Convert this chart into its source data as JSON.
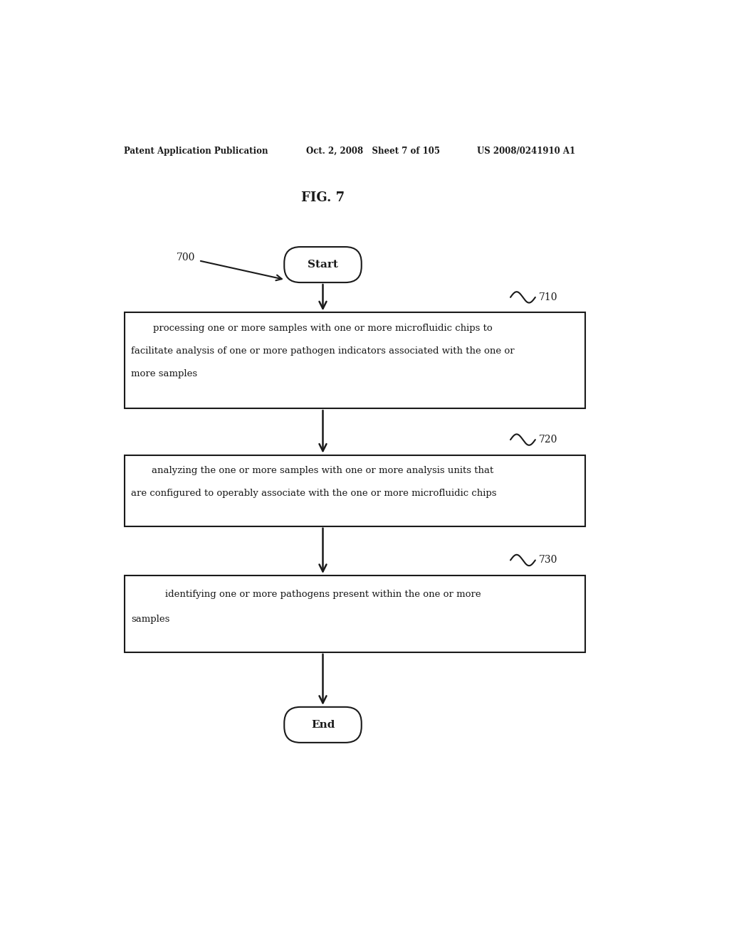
{
  "fig_title": "FIG. 7",
  "header_left": "Patent Application Publication",
  "header_center": "Oct. 2, 2008   Sheet 7 of 105",
  "header_right": "US 2008/0241910 A1",
  "start_label": "Start",
  "end_label": "End",
  "label_700": "700",
  "label_710": "710",
  "label_720": "720",
  "label_730": "730",
  "box1_line1": "processing one or more samples with one or more microfluidic chips to",
  "box1_line2": "facilitate analysis of one or more pathogen indicators associated with the one or",
  "box1_line3": "more samples",
  "box2_line1": "analyzing the one or more samples with one or more analysis units that",
  "box2_line2": "are configured to operably associate with the one or more microfluidic chips",
  "box3_line1": "identifying one or more pathogens present within the one or more",
  "box3_line2": "samples",
  "bg_color": "#ffffff",
  "text_color": "#1a1a1a",
  "line_color": "#1a1a1a",
  "font_size_header": 8.5,
  "font_size_title": 13,
  "font_size_box": 9.5,
  "font_size_label": 10,
  "font_size_terminal": 11
}
